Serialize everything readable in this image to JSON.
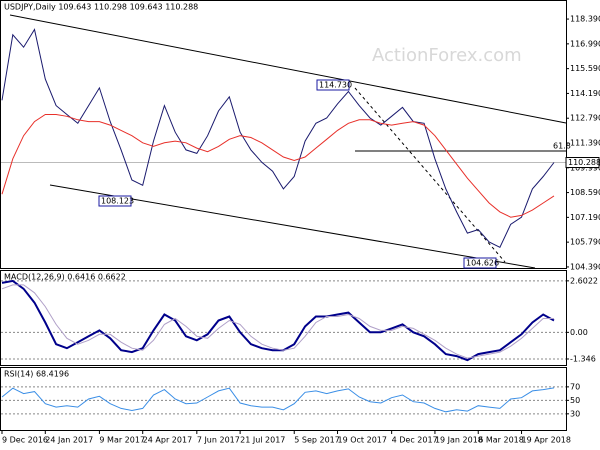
{
  "chart_data": [
    {
      "type": "line",
      "title": "USDJPY,Daily 109.643 110.298 109.643 110.288",
      "watermark": "ActionForex.com",
      "categories": [
        "9 Dec 2016",
        null,
        null,
        null,
        "24 Jan 2017",
        null,
        null,
        null,
        null,
        "9 Mar 2017",
        null,
        null,
        null,
        "24 Apr 2017",
        null,
        null,
        null,
        null,
        "7 Jun 2017",
        null,
        null,
        null,
        "21 Jul 2017",
        null,
        null,
        null,
        null,
        "5 Sep 2017",
        null,
        null,
        null,
        "19 Oct 2017",
        null,
        null,
        null,
        null,
        "4 Dec 2017",
        null,
        null,
        null,
        "19 Jan 2018",
        null,
        null,
        null,
        "6 Mar 2018",
        null,
        null,
        null,
        "19 Apr 2018",
        null,
        null,
        null
      ],
      "series": [
        {
          "name": "USDJPY",
          "color": "#1a1a6e",
          "values": [
            113.8,
            117.5,
            116.8,
            117.8,
            115.0,
            113.5,
            113.0,
            112.5,
            113.5,
            114.5,
            112.6,
            111.0,
            109.3,
            109.0,
            111.5,
            113.5,
            112.0,
            111.0,
            110.8,
            111.8,
            113.2,
            114.0,
            112.0,
            111.0,
            110.3,
            109.8,
            108.8,
            109.5,
            111.5,
            112.5,
            112.8,
            113.6,
            114.3,
            113.5,
            112.8,
            112.4,
            112.9,
            113.4,
            112.6,
            112.5,
            110.5,
            108.8,
            107.5,
            106.3,
            106.5,
            105.8,
            105.5,
            106.8,
            107.2,
            108.8,
            109.5,
            110.288
          ]
        },
        {
          "name": "MA",
          "color": "#e8302a",
          "values": [
            108.5,
            110.5,
            111.8,
            112.6,
            113.0,
            113.0,
            112.9,
            112.7,
            112.6,
            112.6,
            112.4,
            112.1,
            111.8,
            111.4,
            111.2,
            111.4,
            111.5,
            111.4,
            111.1,
            110.9,
            111.2,
            111.6,
            111.8,
            111.7,
            111.4,
            111.0,
            110.6,
            110.4,
            110.6,
            111.1,
            111.6,
            112.1,
            112.5,
            112.7,
            112.7,
            112.5,
            112.4,
            112.5,
            112.6,
            112.4,
            111.8,
            111.0,
            110.2,
            109.4,
            108.7,
            108.0,
            107.5,
            107.2,
            107.3,
            107.6,
            108.0,
            108.4
          ]
        }
      ],
      "price_marker": {
        "value": 110.288,
        "label": "110.288"
      },
      "annotations": [
        "114.730",
        "108.123",
        "104.626",
        "61.8"
      ],
      "ylim": [
        104.33,
        119.41
      ],
      "yticks": [
        {
          "value": 118.39,
          "label": "118.390"
        },
        {
          "value": 116.99,
          "label": "116.990"
        },
        {
          "value": 115.59,
          "label": "115.590"
        },
        {
          "value": 114.19,
          "label": "114.190"
        },
        {
          "value": 112.79,
          "label": "112.790"
        },
        {
          "value": 111.39,
          "label": "111.390"
        },
        {
          "value": 109.99,
          "label": "109.990"
        },
        {
          "value": 108.59,
          "label": "108.590"
        },
        {
          "value": 107.19,
          "label": "107.190"
        },
        {
          "value": 105.79,
          "label": "105.790"
        },
        {
          "value": 104.39,
          "label": "104.390"
        }
      ]
    },
    {
      "type": "line",
      "title": "MACD(12,26,9) 0.6416 0.6622",
      "series": [
        {
          "name": "MACD",
          "color": "#00008b",
          "values": [
            2.5,
            2.6,
            2.2,
            1.5,
            0.5,
            -0.6,
            -0.8,
            -0.5,
            -0.2,
            0.1,
            -0.3,
            -0.9,
            -1.0,
            -0.8,
            0.1,
            0.9,
            0.6,
            -0.2,
            -0.4,
            -0.1,
            0.6,
            0.8,
            0.0,
            -0.6,
            -0.8,
            -0.9,
            -0.9,
            -0.6,
            0.3,
            0.8,
            0.8,
            0.9,
            1.0,
            0.5,
            0.0,
            0.0,
            0.2,
            0.4,
            0.0,
            -0.2,
            -0.6,
            -1.1,
            -1.2,
            -1.4,
            -1.1,
            -1.0,
            -0.9,
            -0.5,
            -0.1,
            0.5,
            0.9,
            0.6
          ]
        },
        {
          "name": "Signal",
          "color": "#b0a0c8",
          "values": [
            2.2,
            2.4,
            2.4,
            2.0,
            1.3,
            0.4,
            -0.3,
            -0.6,
            -0.4,
            -0.1,
            -0.1,
            -0.5,
            -0.8,
            -0.9,
            -0.4,
            0.4,
            0.7,
            0.3,
            -0.2,
            -0.3,
            0.2,
            0.6,
            0.4,
            -0.2,
            -0.6,
            -0.8,
            -0.9,
            -0.8,
            -0.2,
            0.5,
            0.8,
            0.8,
            0.9,
            0.7,
            0.3,
            0.1,
            0.1,
            0.3,
            0.2,
            -0.1,
            -0.4,
            -0.8,
            -1.1,
            -1.3,
            -1.2,
            -1.1,
            -1.0,
            -0.7,
            -0.3,
            0.2,
            0.7,
            0.7
          ]
        }
      ],
      "ylim": [
        -1.65,
        3.1
      ],
      "yticks": [
        2.6022,
        {
          "value": 0,
          "label": "0.00"
        },
        -1.346
      ]
    },
    {
      "type": "line",
      "title": "RSI(14) 68.4196",
      "series": [
        {
          "name": "RSI",
          "color": "#3a8ee6",
          "values": [
            55,
            68,
            60,
            63,
            45,
            40,
            42,
            40,
            52,
            56,
            45,
            38,
            35,
            38,
            58,
            66,
            52,
            45,
            46,
            55,
            64,
            68,
            46,
            42,
            40,
            40,
            36,
            45,
            62,
            64,
            60,
            64,
            67,
            55,
            48,
            46,
            54,
            58,
            48,
            46,
            38,
            33,
            36,
            34,
            42,
            40,
            38,
            52,
            54,
            64,
            66,
            68.4196
          ]
        }
      ],
      "ylim": [
        6,
        98
      ],
      "yticks": [
        70,
        50,
        30
      ]
    }
  ]
}
